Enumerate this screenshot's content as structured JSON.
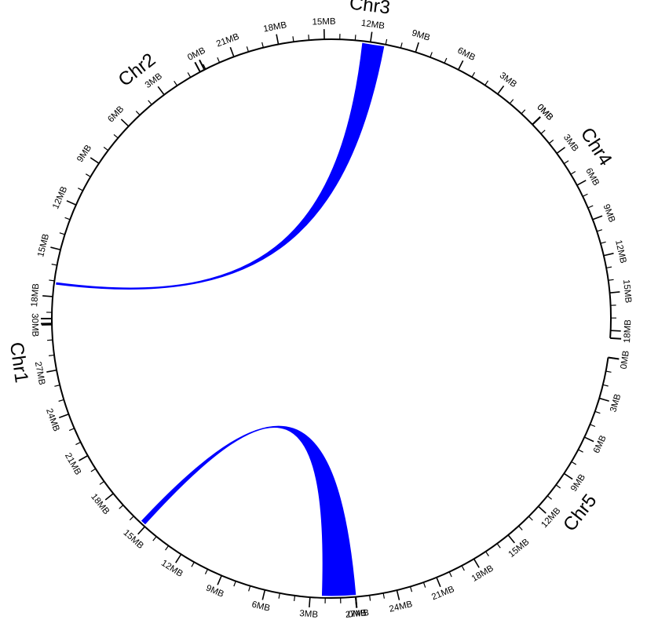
{
  "diagram": {
    "type": "circos",
    "tick_unit_mb": 1,
    "label_every_mb": 3,
    "label_suffix": "MB",
    "chromosomes": [
      {
        "name": "Chr1",
        "length_mb": 30.4,
        "start_deg": 85,
        "end_deg": 180,
        "reversed": false
      },
      {
        "name": "Chr2",
        "length_mb": 19.7,
        "start_deg": 179,
        "end_deg": 243,
        "reversed": true
      },
      {
        "name": "Chr3",
        "length_mb": 23.4,
        "start_deg": 242,
        "end_deg": 316,
        "reversed": true
      },
      {
        "name": "Chr4",
        "length_mb": 18.6,
        "start_deg": 316,
        "end_deg": 364,
        "reversed": false
      },
      {
        "name": "Chr5",
        "length_mb": 27,
        "start_deg": 8,
        "end_deg": 85,
        "reversed": false
      }
    ],
    "links": [
      {
        "a": {
          "chr": "Chr1",
          "from_mb": 0,
          "to_mb": 2.2
        },
        "b": {
          "chr": "Chr1",
          "from_mb": 15.1,
          "to_mb": 15.4
        },
        "color": "#0000ff"
      },
      {
        "a": {
          "chr": "Chr3",
          "from_mb": 11.1,
          "to_mb": 12.5
        },
        "b": {
          "chr": "Chr2",
          "from_mb": 17.1,
          "to_mb": 17.2
        },
        "color": "#0000ff"
      }
    ]
  }
}
